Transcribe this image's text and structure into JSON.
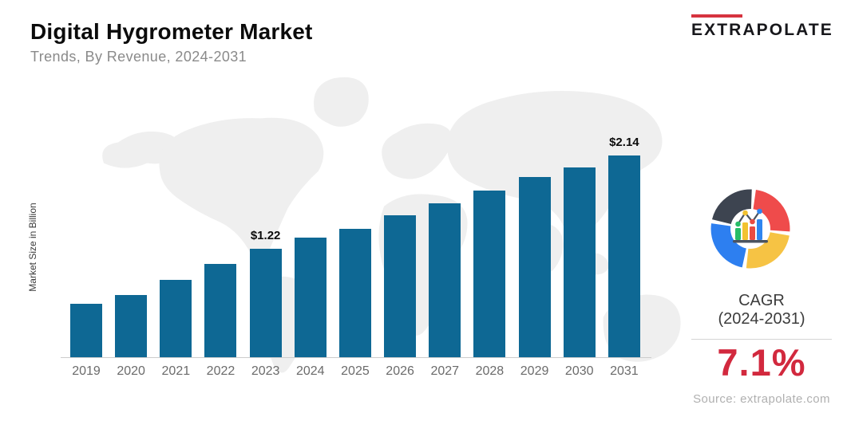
{
  "header": {
    "title": "Digital Hygrometer Market",
    "subtitle": "Trends, By Revenue, 2024-2031"
  },
  "logo": {
    "text": "EXTRAPOLATE",
    "bar_color": "#d6333f"
  },
  "chart_data": {
    "type": "bar",
    "title": "Digital Hygrometer Market",
    "subtitle": "Trends, By Revenue, 2024-2031",
    "ylabel": "Market Size in Billion",
    "xlabel": "",
    "categories": [
      "2019",
      "2020",
      "2021",
      "2022",
      "2023",
      "2024",
      "2025",
      "2026",
      "2027",
      "2028",
      "2029",
      "2030",
      "2031"
    ],
    "values": [
      0.68,
      0.76,
      0.91,
      1.07,
      1.22,
      1.33,
      1.42,
      1.55,
      1.67,
      1.79,
      1.93,
      2.02,
      2.14
    ],
    "point_labels": [
      "",
      "",
      "",
      "",
      "$1.22",
      "",
      "",
      "",
      "",
      "",
      "",
      "",
      "$2.14"
    ],
    "bar_color": "#0e6894",
    "ylim": [
      0.15,
      2.14
    ],
    "grid": false,
    "legend": "none",
    "y_axis_ticks_visible": false
  },
  "side_panel": {
    "cagr_label": "CAGR",
    "cagr_range": "(2024-2031)",
    "cagr_value": "7.1%",
    "source": "Source: extrapolate.com"
  },
  "colors": {
    "accent_red": "#d2293e",
    "bar": "#0e6894",
    "map": "#efefef",
    "baseline": "#cccccc",
    "donut": {
      "dark": "#3d4450",
      "red": "#ef4b4b",
      "yellow": "#f6c344",
      "blue": "#2d7ff0"
    },
    "mini": {
      "green": "#27bd68",
      "yellow": "#f2c230",
      "red": "#ea4b42",
      "blue": "#2f86f0",
      "line": "#4a5360"
    }
  }
}
